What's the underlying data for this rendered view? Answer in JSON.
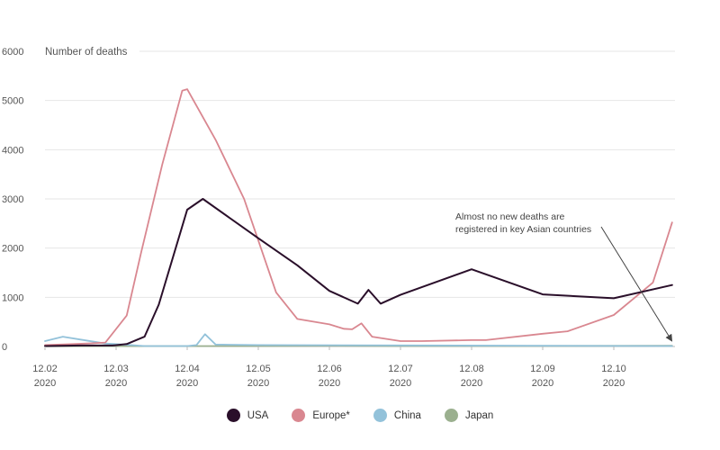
{
  "chart_data": {
    "type": "line",
    "ylabel": "Number of deaths",
    "ylim": [
      0,
      6000
    ],
    "yticks": [
      0,
      1000,
      2000,
      3000,
      4000,
      5000,
      6000
    ],
    "x_ticks": [
      {
        "t": 0,
        "month": "12.02",
        "year": "2020"
      },
      {
        "t": 1,
        "month": "12.03",
        "year": "2020"
      },
      {
        "t": 2,
        "month": "12.04",
        "year": "2020"
      },
      {
        "t": 3,
        "month": "12.05",
        "year": "2020"
      },
      {
        "t": 4,
        "month": "12.06",
        "year": "2020"
      },
      {
        "t": 5,
        "month": "12.07",
        "year": "2020"
      },
      {
        "t": 6,
        "month": "12.08",
        "year": "2020"
      },
      {
        "t": 7,
        "month": "12.09",
        "year": "2020"
      },
      {
        "t": 8,
        "month": "12.10",
        "year": "2020"
      }
    ],
    "x_range": [
      0,
      8.82
    ],
    "grid": "horizontal",
    "legend_position": "bottom-center",
    "series": [
      {
        "name": "USA",
        "color": "#2a0f2a",
        "points": [
          [
            0,
            10
          ],
          [
            0.5,
            20
          ],
          [
            0.95,
            20
          ],
          [
            1.15,
            50
          ],
          [
            1.4,
            200
          ],
          [
            1.6,
            850
          ],
          [
            2.0,
            2780
          ],
          [
            2.22,
            3000
          ],
          [
            3.0,
            2200
          ],
          [
            3.55,
            1650
          ],
          [
            4.0,
            1130
          ],
          [
            4.4,
            870
          ],
          [
            4.55,
            1150
          ],
          [
            4.72,
            870
          ],
          [
            5.0,
            1050
          ],
          [
            6.0,
            1570
          ],
          [
            7.0,
            1060
          ],
          [
            8.0,
            980
          ],
          [
            8.82,
            1250
          ]
        ]
      },
      {
        "name": "Europe*",
        "color": "#d98790",
        "points": [
          [
            0,
            30
          ],
          [
            0.6,
            60
          ],
          [
            0.85,
            80
          ],
          [
            1.15,
            630
          ],
          [
            1.35,
            1900
          ],
          [
            1.65,
            3700
          ],
          [
            1.93,
            5200
          ],
          [
            2.0,
            5230
          ],
          [
            2.4,
            4200
          ],
          [
            2.8,
            3000
          ],
          [
            3.25,
            1100
          ],
          [
            3.55,
            560
          ],
          [
            4.0,
            450
          ],
          [
            4.2,
            360
          ],
          [
            4.32,
            350
          ],
          [
            4.45,
            470
          ],
          [
            4.6,
            200
          ],
          [
            5.0,
            110
          ],
          [
            5.3,
            110
          ],
          [
            6.0,
            130
          ],
          [
            6.2,
            130
          ],
          [
            7.0,
            260
          ],
          [
            7.35,
            310
          ],
          [
            8.0,
            640
          ],
          [
            8.55,
            1300
          ],
          [
            8.82,
            2520
          ]
        ]
      },
      {
        "name": "China",
        "color": "#93c2da",
        "points": [
          [
            0,
            110
          ],
          [
            0.25,
            200
          ],
          [
            0.5,
            140
          ],
          [
            0.85,
            60
          ],
          [
            1.1,
            40
          ],
          [
            1.4,
            10
          ],
          [
            2.0,
            10
          ],
          [
            2.13,
            30
          ],
          [
            2.25,
            250
          ],
          [
            2.4,
            40
          ],
          [
            3.0,
            30
          ],
          [
            8.82,
            10
          ]
        ]
      },
      {
        "name": "Japan",
        "color": "#9bb08f",
        "points": [
          [
            0,
            5
          ],
          [
            3.0,
            10
          ],
          [
            4.0,
            15
          ],
          [
            5.0,
            10
          ],
          [
            8.82,
            15
          ]
        ]
      }
    ],
    "annotation": {
      "lines": [
        "Almost no new deaths are",
        "registered in key Asian countries"
      ]
    }
  }
}
